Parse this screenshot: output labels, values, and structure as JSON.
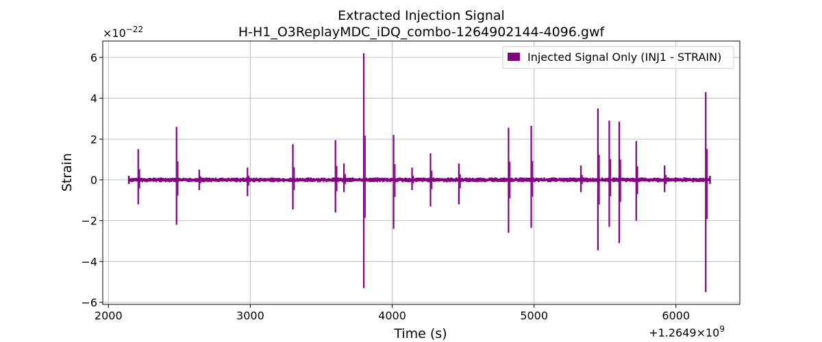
{
  "chart_data": {
    "type": "line",
    "title": "Extracted Injection Signal",
    "subtitle": "H-H1_O3ReplayMDC_iDQ_combo-1264902144-4096.gwf",
    "xlabel": "Time (s)",
    "ylabel": "Strain",
    "x_offset_label": "+1.2649×10",
    "x_offset_exponent": "9",
    "y_scale_label": "×10",
    "y_scale_exponent": "−22",
    "xlim": [
      1960,
      6450
    ],
    "ylim": [
      -6.1,
      6.8
    ],
    "x_ticks": [
      2000,
      3000,
      4000,
      5000,
      6000
    ],
    "x_tick_labels": [
      "2000",
      "3000",
      "4000",
      "5000",
      "6000"
    ],
    "y_ticks": [
      -6,
      -4,
      -2,
      0,
      2,
      4,
      6
    ],
    "y_tick_labels": [
      "−6",
      "−4",
      "−2",
      "0",
      "2",
      "4",
      "6"
    ],
    "grid": true,
    "legend_position": "top-right",
    "color": "#800080",
    "series": [
      {
        "name": "Injected Signal Only (INJ1 - STRAIN)",
        "x_range": [
          2144,
          6240
        ],
        "noise_band": 0.12,
        "bursts": [
          {
            "x": 2210,
            "max": 1.5,
            "min": -1.2
          },
          {
            "x": 2480,
            "max": 2.6,
            "min": -2.2
          },
          {
            "x": 2640,
            "max": 0.5,
            "min": -0.5
          },
          {
            "x": 2980,
            "max": 0.6,
            "min": -0.8
          },
          {
            "x": 3300,
            "max": 1.75,
            "min": -1.45
          },
          {
            "x": 3600,
            "max": 1.95,
            "min": -1.6
          },
          {
            "x": 3660,
            "max": 0.8,
            "min": -0.6
          },
          {
            "x": 3800,
            "max": 6.2,
            "min": -5.3
          },
          {
            "x": 4010,
            "max": 2.2,
            "min": -2.4
          },
          {
            "x": 4140,
            "max": 0.6,
            "min": -0.5
          },
          {
            "x": 4270,
            "max": 1.3,
            "min": -1.3
          },
          {
            "x": 4470,
            "max": 0.8,
            "min": -1.2
          },
          {
            "x": 4820,
            "max": 2.55,
            "min": -2.6
          },
          {
            "x": 4980,
            "max": 2.65,
            "min": -2.35
          },
          {
            "x": 5330,
            "max": 0.7,
            "min": -0.6
          },
          {
            "x": 5450,
            "max": 3.5,
            "min": -3.45
          },
          {
            "x": 5530,
            "max": 2.9,
            "min": -2.3
          },
          {
            "x": 5600,
            "max": 2.85,
            "min": -3.1
          },
          {
            "x": 5720,
            "max": 1.9,
            "min": -2.0
          },
          {
            "x": 5920,
            "max": 0.7,
            "min": -0.6
          },
          {
            "x": 6210,
            "max": 4.3,
            "min": -5.5
          }
        ]
      }
    ]
  }
}
